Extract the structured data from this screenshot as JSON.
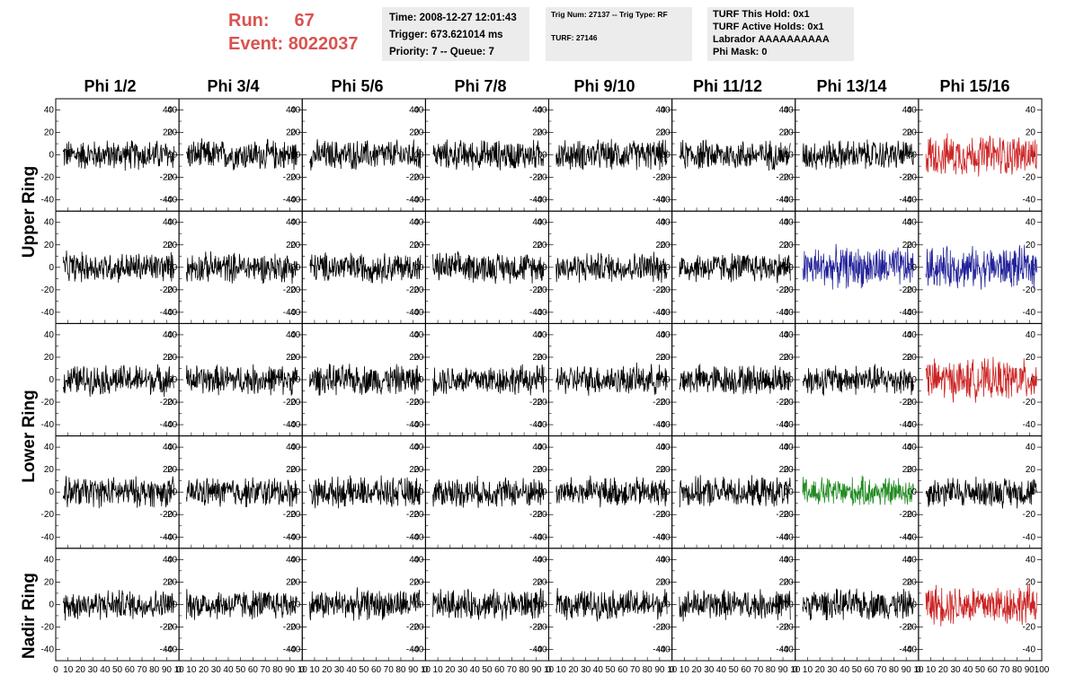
{
  "header": {
    "run_label": "Run:",
    "run_value": "67",
    "event_label": "Event:",
    "event_value": "8022037"
  },
  "info_boxes": {
    "time": "Time: 2008-12-27 12:01:43",
    "trigger": "Trigger: 673.621014 ms",
    "priority": "Priority: 7 -- Queue: 7",
    "trig_num": "Trig Num: 27137 -- Trig Type: RF",
    "turf": "TURF: 27146",
    "turf_this_hold": "TURF This Hold: 0x1",
    "turf_active_holds": "TURF Active Holds: 0x1",
    "labrador": "Labrador AAAAAAAAAA",
    "phi_mask": "Phi Mask: 0"
  },
  "columns": [
    "Phi 1/2",
    "Phi 3/4",
    "Phi 5/6",
    "Phi 7/8",
    "Phi 9/10",
    "Phi 11/12",
    "Phi 13/14",
    "Phi 15/16"
  ],
  "ring_labels": {
    "upper": "Upper Ring",
    "lower": "Lower Ring",
    "nadir": "Nadir Ring"
  },
  "colors": {
    "header_red": "#d9534f",
    "trace_default": "#000000",
    "trace_red": "#cc2222",
    "trace_blue": "#22229a",
    "trace_green": "#228b22",
    "info_bg": "#ececec"
  },
  "chart_data": {
    "type": "line",
    "grid_rows": 5,
    "grid_cols": 8,
    "xlim": [
      0,
      100
    ],
    "ylim": [
      -50,
      50
    ],
    "x_ticks": [
      "0",
      "10",
      "20",
      "30",
      "40",
      "50",
      "60",
      "70",
      "80",
      "90",
      "10"
    ],
    "x_ticks_last": [
      "0",
      "10",
      "20",
      "30",
      "40",
      "50",
      "60",
      "70",
      "80",
      "90",
      "100"
    ],
    "y_ticks": [
      "40",
      "20",
      "0",
      "-20",
      "-40"
    ],
    "highlighted_panels": [
      {
        "row": 0,
        "col": 7,
        "color": "red"
      },
      {
        "row": 1,
        "col": 6,
        "color": "blue"
      },
      {
        "row": 1,
        "col": 7,
        "color": "blue"
      },
      {
        "row": 2,
        "col": 7,
        "color": "red"
      },
      {
        "row": 3,
        "col": 6,
        "color": "green"
      },
      {
        "row": 4,
        "col": 7,
        "color": "red"
      }
    ],
    "trace_amplitude_note": "",
    "samples_per_trace": 260
  }
}
